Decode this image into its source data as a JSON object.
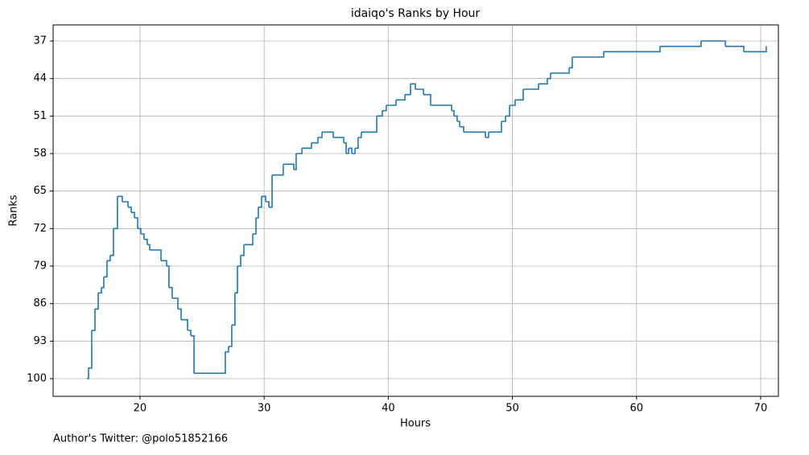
{
  "chart_data": {
    "type": "step",
    "title": "idaiqo's Ranks by Hour",
    "xlabel": "Hours",
    "ylabel": "Ranks",
    "footer": "Author's Twitter: @polo51852166",
    "x": [
      15.72,
      15.85,
      16.11,
      16.37,
      16.63,
      16.89,
      17.08,
      17.34,
      17.6,
      17.86,
      18.18,
      18.57,
      19.03,
      19.29,
      19.55,
      19.81,
      20.06,
      20.32,
      20.58,
      20.78,
      21.69,
      22.14,
      22.33,
      22.59,
      23.05,
      23.31,
      23.83,
      24.09,
      24.35,
      26.87,
      27.13,
      27.39,
      27.65,
      27.85,
      28.11,
      28.37,
      29.08,
      29.34,
      29.53,
      29.79,
      30.12,
      30.38,
      30.64,
      31.09,
      31.54,
      32.39,
      32.58,
      33.04,
      33.81,
      34.33,
      34.66,
      35.56,
      36.41,
      36.6,
      36.8,
      37.06,
      37.32,
      37.57,
      37.83,
      39.07,
      39.52,
      39.84,
      40.62,
      41.34,
      41.79,
      42.18,
      42.83,
      43.41,
      45.1,
      45.29,
      45.55,
      45.75,
      46.07,
      47.82,
      48.08,
      49.12,
      49.44,
      49.77,
      50.22,
      50.87,
      52.1,
      52.81,
      53.07,
      54.57,
      54.82,
      57.35,
      61.89,
      65.2,
      67.15,
      68.64,
      70.45
    ],
    "values": [
      100,
      98,
      91,
      87,
      84,
      83,
      81,
      78,
      77,
      72,
      66,
      67,
      68,
      69,
      70,
      72,
      73,
      74,
      75,
      76,
      78,
      79,
      83,
      85,
      87,
      89,
      91,
      92,
      99,
      95,
      94,
      90,
      84,
      79,
      77,
      75,
      73,
      70,
      68,
      66,
      67,
      68,
      62,
      62,
      60,
      61,
      58,
      57,
      56,
      55,
      54,
      55,
      56,
      58,
      57,
      58,
      57,
      55,
      54,
      51,
      50,
      49,
      48,
      47,
      45,
      46,
      47,
      49,
      50,
      51,
      52,
      53,
      54,
      55,
      54,
      52,
      51,
      49,
      48,
      46,
      45,
      44,
      43,
      42,
      40,
      39,
      38,
      37,
      38,
      39,
      38
    ],
    "color": "#1f77b4",
    "xlim": [
      13.0,
      71.43
    ],
    "ylim": [
      103.3,
      34
    ],
    "xticks": [
      20,
      30,
      40,
      50,
      60,
      70
    ],
    "yticks": [
      37,
      44,
      51,
      58,
      65,
      72,
      79,
      86,
      93,
      100
    ],
    "grid": true
  }
}
